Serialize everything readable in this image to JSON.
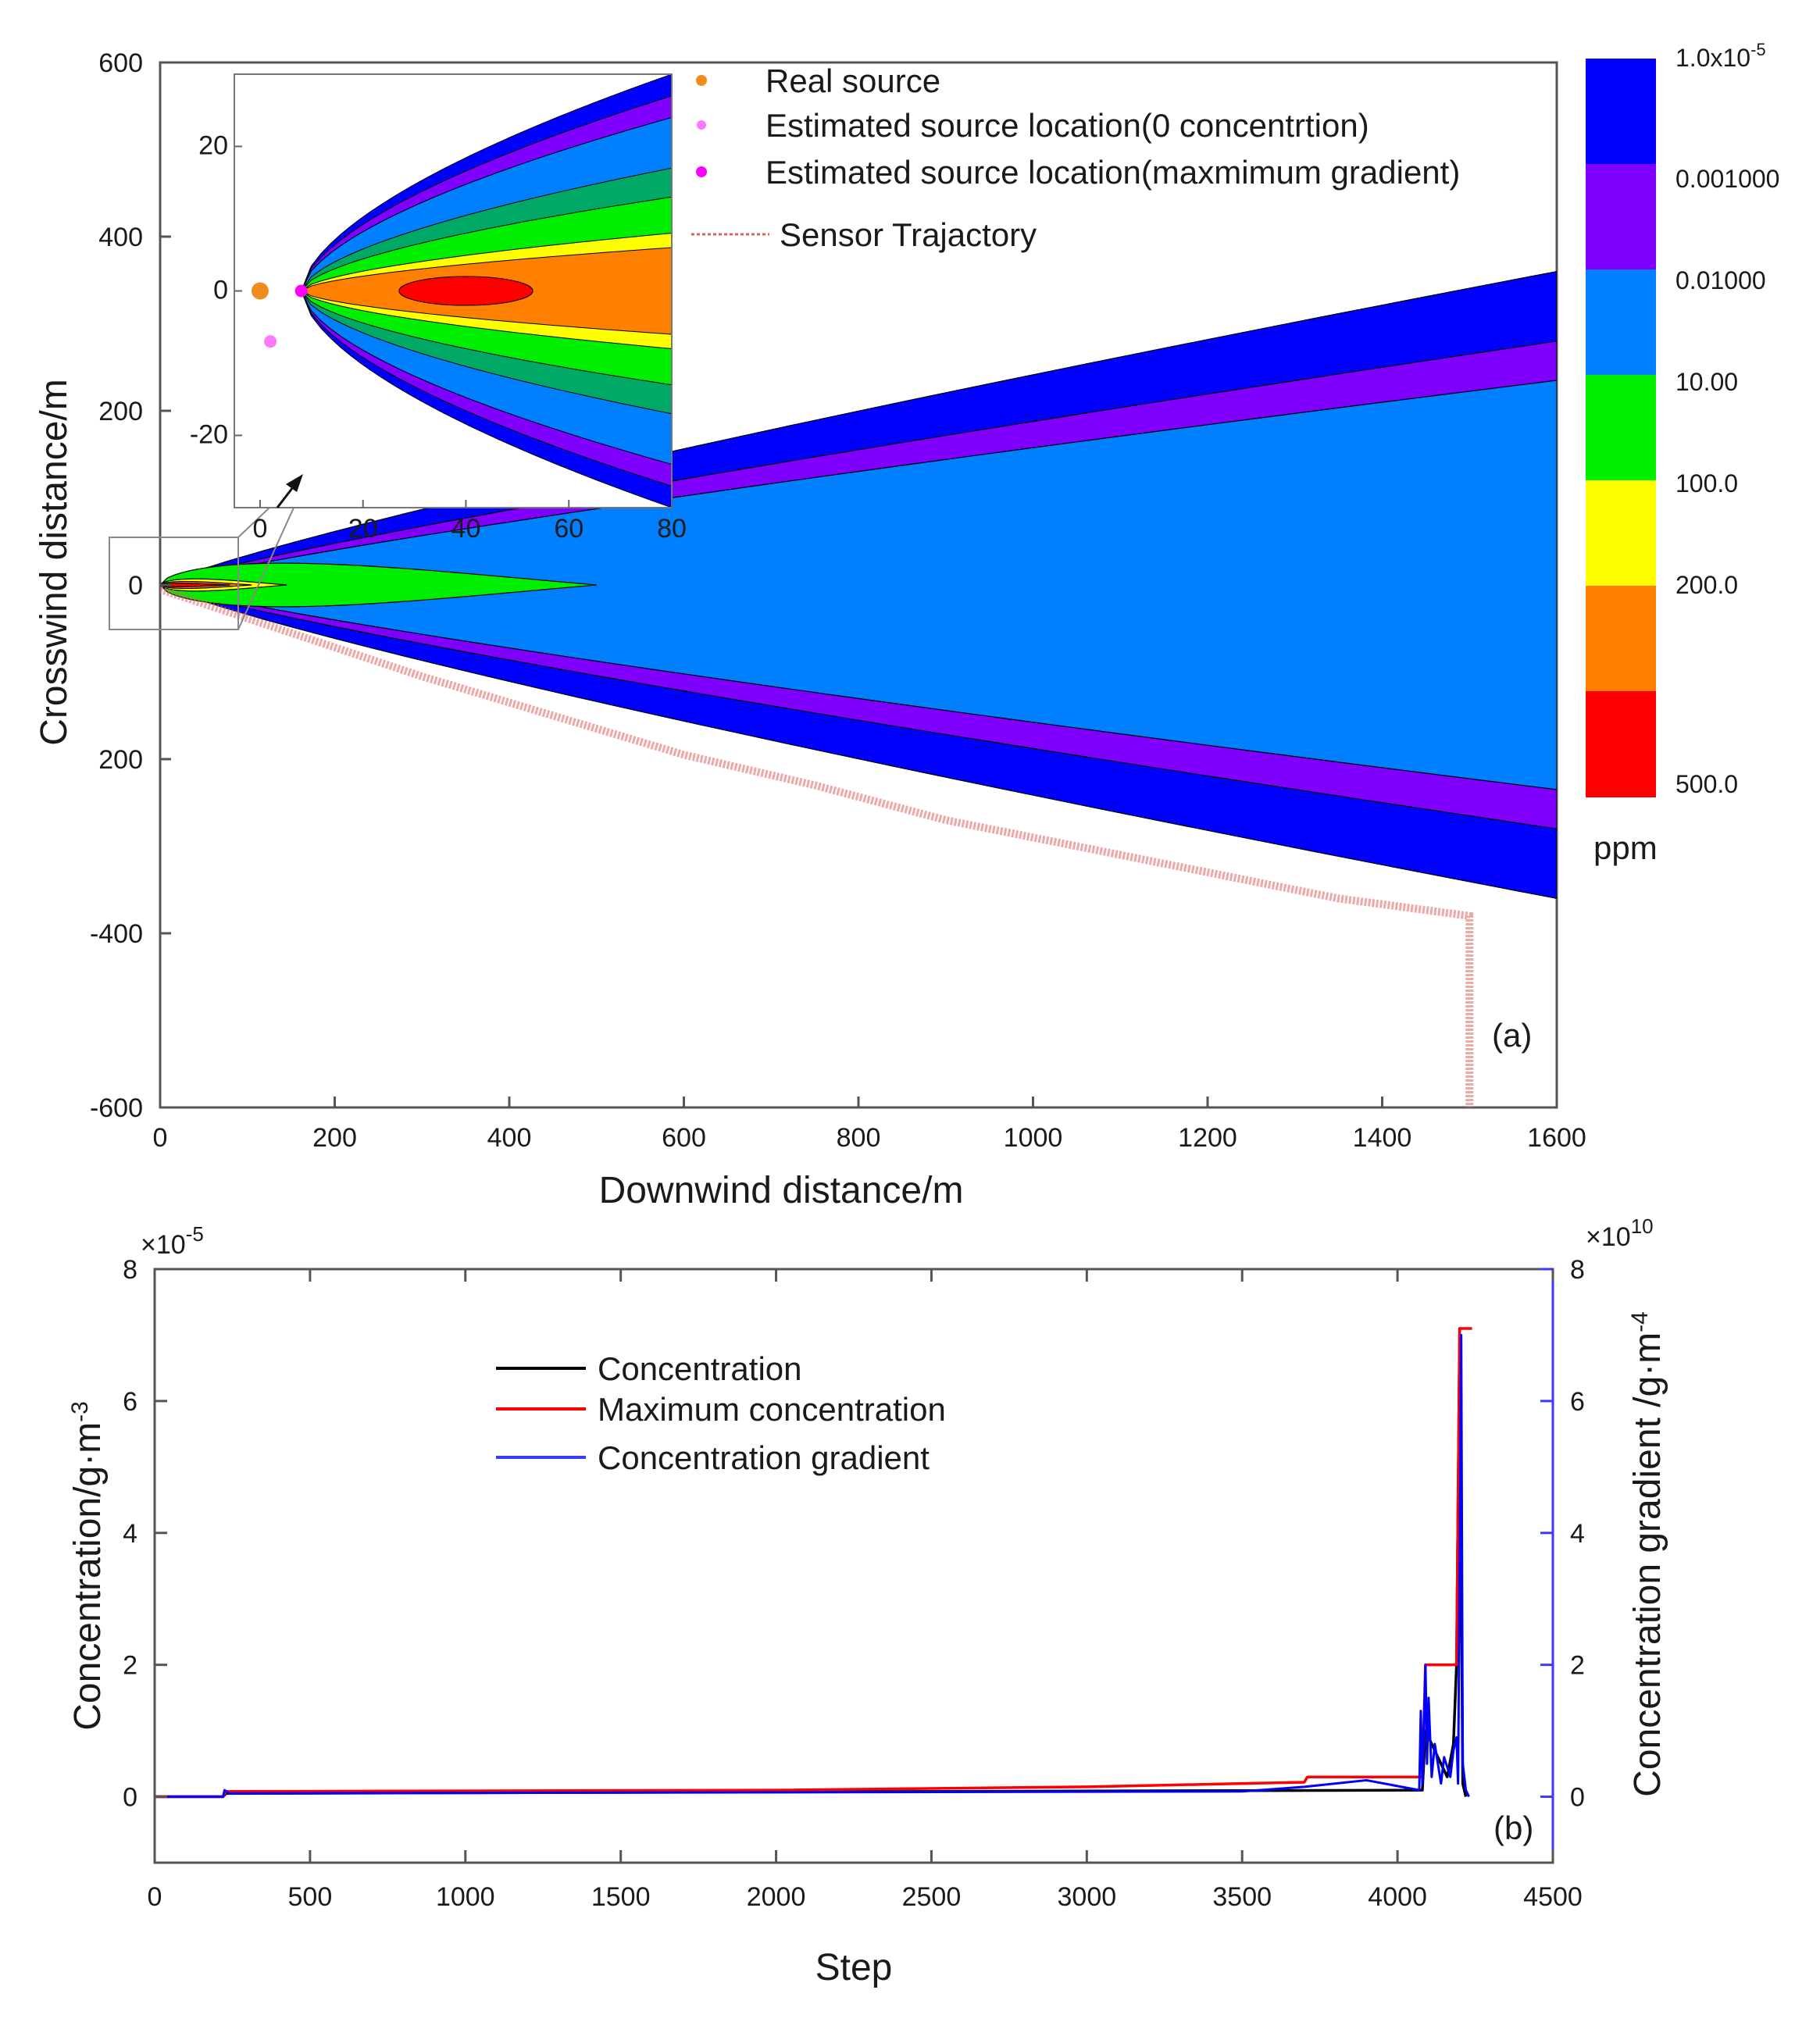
{
  "chart_data": [
    {
      "type": "contour",
      "panel_label": "(a)",
      "xlabel": "Downwind distance/m",
      "ylabel": "Crosswind distance/m",
      "xlim": [
        0,
        1600
      ],
      "ylim": [
        -600,
        600
      ],
      "x_ticks": [
        "0",
        "200",
        "400",
        "600",
        "800",
        "1000",
        "1200",
        "1400",
        "1600"
      ],
      "y_ticks": [
        "600",
        "400",
        "200",
        "0",
        "200",
        "-400",
        "-600"
      ],
      "legend": {
        "placement": "top",
        "entries": [
          {
            "label": "Real source",
            "color": "#f08c1e"
          },
          {
            "label": "Estimated source location(0 concentrtion)",
            "color": "#ff77ff"
          },
          {
            "label": "Estimated source location(maxmimum gradient)",
            "color": "#ff00ff"
          },
          {
            "label": "Sensor Trajactory",
            "color": "#e06060"
          }
        ]
      },
      "colorbar": {
        "unit": "ppm",
        "colors": [
          "#0000ff",
          "#8000ff",
          "#0080ff",
          "#00ee00",
          "#ffff00",
          "#ff8000",
          "#ff0000"
        ],
        "labels": [
          {
            "base": "1.0x10",
            "exp": "-5"
          },
          {
            "base": "0.001000",
            "exp": ""
          },
          {
            "base": "0.01000",
            "exp": ""
          },
          {
            "base": "10.00",
            "exp": ""
          },
          {
            "base": "100.0",
            "exp": ""
          },
          {
            "base": "200.0",
            "exp": ""
          },
          {
            "base": "500.0",
            "exp": ""
          }
        ]
      },
      "plume_bands": [
        {
          "color": "#0000ff",
          "x_end": 1600,
          "half_width_end": 360
        },
        {
          "color": "#8000ff",
          "x_end": 1600,
          "half_width_end": 280
        },
        {
          "color": "#0080ff",
          "x_end": 1600,
          "half_width_end": 235
        }
      ],
      "inner_contours": [
        {
          "color": "#00ee00",
          "x_end": 500,
          "half_width": 25
        },
        {
          "color": "#ffff00",
          "x_end": 145,
          "half_width": 7
        },
        {
          "color": "#ff8000",
          "x_end": 105,
          "half_width": 4
        },
        {
          "color": "#ff0000",
          "x_end": 80,
          "half_width": 2
        }
      ],
      "sensor_trajectory": [
        [
          0,
          -5
        ],
        [
          150,
          -55
        ],
        [
          300,
          -105
        ],
        [
          450,
          -150
        ],
        [
          600,
          -195
        ],
        [
          750,
          -230
        ],
        [
          900,
          -270
        ],
        [
          1050,
          -300
        ],
        [
          1200,
          -330
        ],
        [
          1350,
          -360
        ],
        [
          1500,
          -380
        ],
        [
          1500,
          -600
        ]
      ],
      "inset": {
        "xlim": [
          -5,
          80
        ],
        "ylim": [
          -30,
          30
        ],
        "x_ticks": [
          "0",
          "20",
          "40",
          "60",
          "80"
        ],
        "y_ticks": [
          "20",
          "0",
          "-20"
        ],
        "real_source": [
          0,
          0
        ],
        "estimated_zero_concentration": [
          2,
          -7
        ],
        "estimated_max_gradient": [
          8,
          0
        ],
        "band_half_widths": [
          {
            "color": "#0000ff",
            "half_width": 30
          },
          {
            "color": "#8000ff",
            "half_width": 27
          },
          {
            "color": "#0080ff",
            "half_width": 24
          },
          {
            "color": "#00aa66",
            "half_width": 17
          },
          {
            "color": "#00ee00",
            "half_width": 13
          },
          {
            "color": "#ffff00",
            "half_width": 8
          },
          {
            "color": "#ff8000",
            "half_width": 6
          }
        ],
        "red_core": {
          "x_center": 40,
          "half_length": 13,
          "half_width": 2
        }
      }
    },
    {
      "type": "line",
      "panel_label": "(b)",
      "xlabel": "Step",
      "ylabel_left": "Concentration/g·m",
      "ylabel_left_exp": "-3",
      "ylabel_right": "Concentration gradient /g·m",
      "ylabel_right_exp": "-4",
      "left_multiplier": {
        "base": "×10",
        "exp": "-5"
      },
      "right_multiplier": {
        "base": "×10",
        "exp": "10"
      },
      "xlim": [
        0,
        4500
      ],
      "ylim_left": [
        -1,
        8
      ],
      "ylim_right": [
        -1,
        8
      ],
      "x_ticks": [
        "0",
        "500",
        "1000",
        "1500",
        "2000",
        "2500",
        "3000",
        "3500",
        "4000",
        "4500"
      ],
      "y_ticks_left": [
        "0",
        "2",
        "4",
        "6",
        "8"
      ],
      "y_ticks_right": [
        "0",
        "2",
        "4",
        "6",
        "8"
      ],
      "series": [
        {
          "name": "Concentration",
          "color": "#000000",
          "x": [
            0,
            220,
            230,
            4080,
            4090,
            4160,
            4180,
            4190,
            4200,
            4210,
            4220
          ],
          "y": [
            0,
            0,
            0.05,
            0.1,
            1.0,
            0.3,
            0.8,
            2.0,
            7.0,
            0.2,
            0
          ]
        },
        {
          "name": "Maximum concentration",
          "color": "#ff0000",
          "x": [
            0,
            220,
            230,
            2000,
            3000,
            3500,
            3700,
            3710,
            4080,
            4090,
            4190,
            4200,
            4240
          ],
          "y": [
            0,
            0,
            0.08,
            0.1,
            0.15,
            0.2,
            0.22,
            0.3,
            0.3,
            2.0,
            2.0,
            7.1,
            7.1
          ]
        },
        {
          "name": "Concentration gradient",
          "color": "#0000ff",
          "x": [
            0,
            220,
            225,
            240,
            3500,
            3700,
            3900,
            4070,
            4075,
            4080,
            4090,
            4095,
            4100,
            4110,
            4120,
            4140,
            4150,
            4170,
            4180,
            4190,
            4195,
            4200,
            4205,
            4210,
            4220,
            4230
          ],
          "y": [
            0,
            0,
            0.1,
            0.05,
            0.08,
            0.15,
            0.25,
            0.1,
            1.3,
            0.2,
            2.0,
            0.5,
            1.5,
            0.3,
            0.8,
            0.2,
            0.6,
            0.3,
            0.7,
            0.9,
            0.2,
            3.5,
            7.0,
            0.5,
            0.1,
            0
          ]
        }
      ]
    }
  ]
}
